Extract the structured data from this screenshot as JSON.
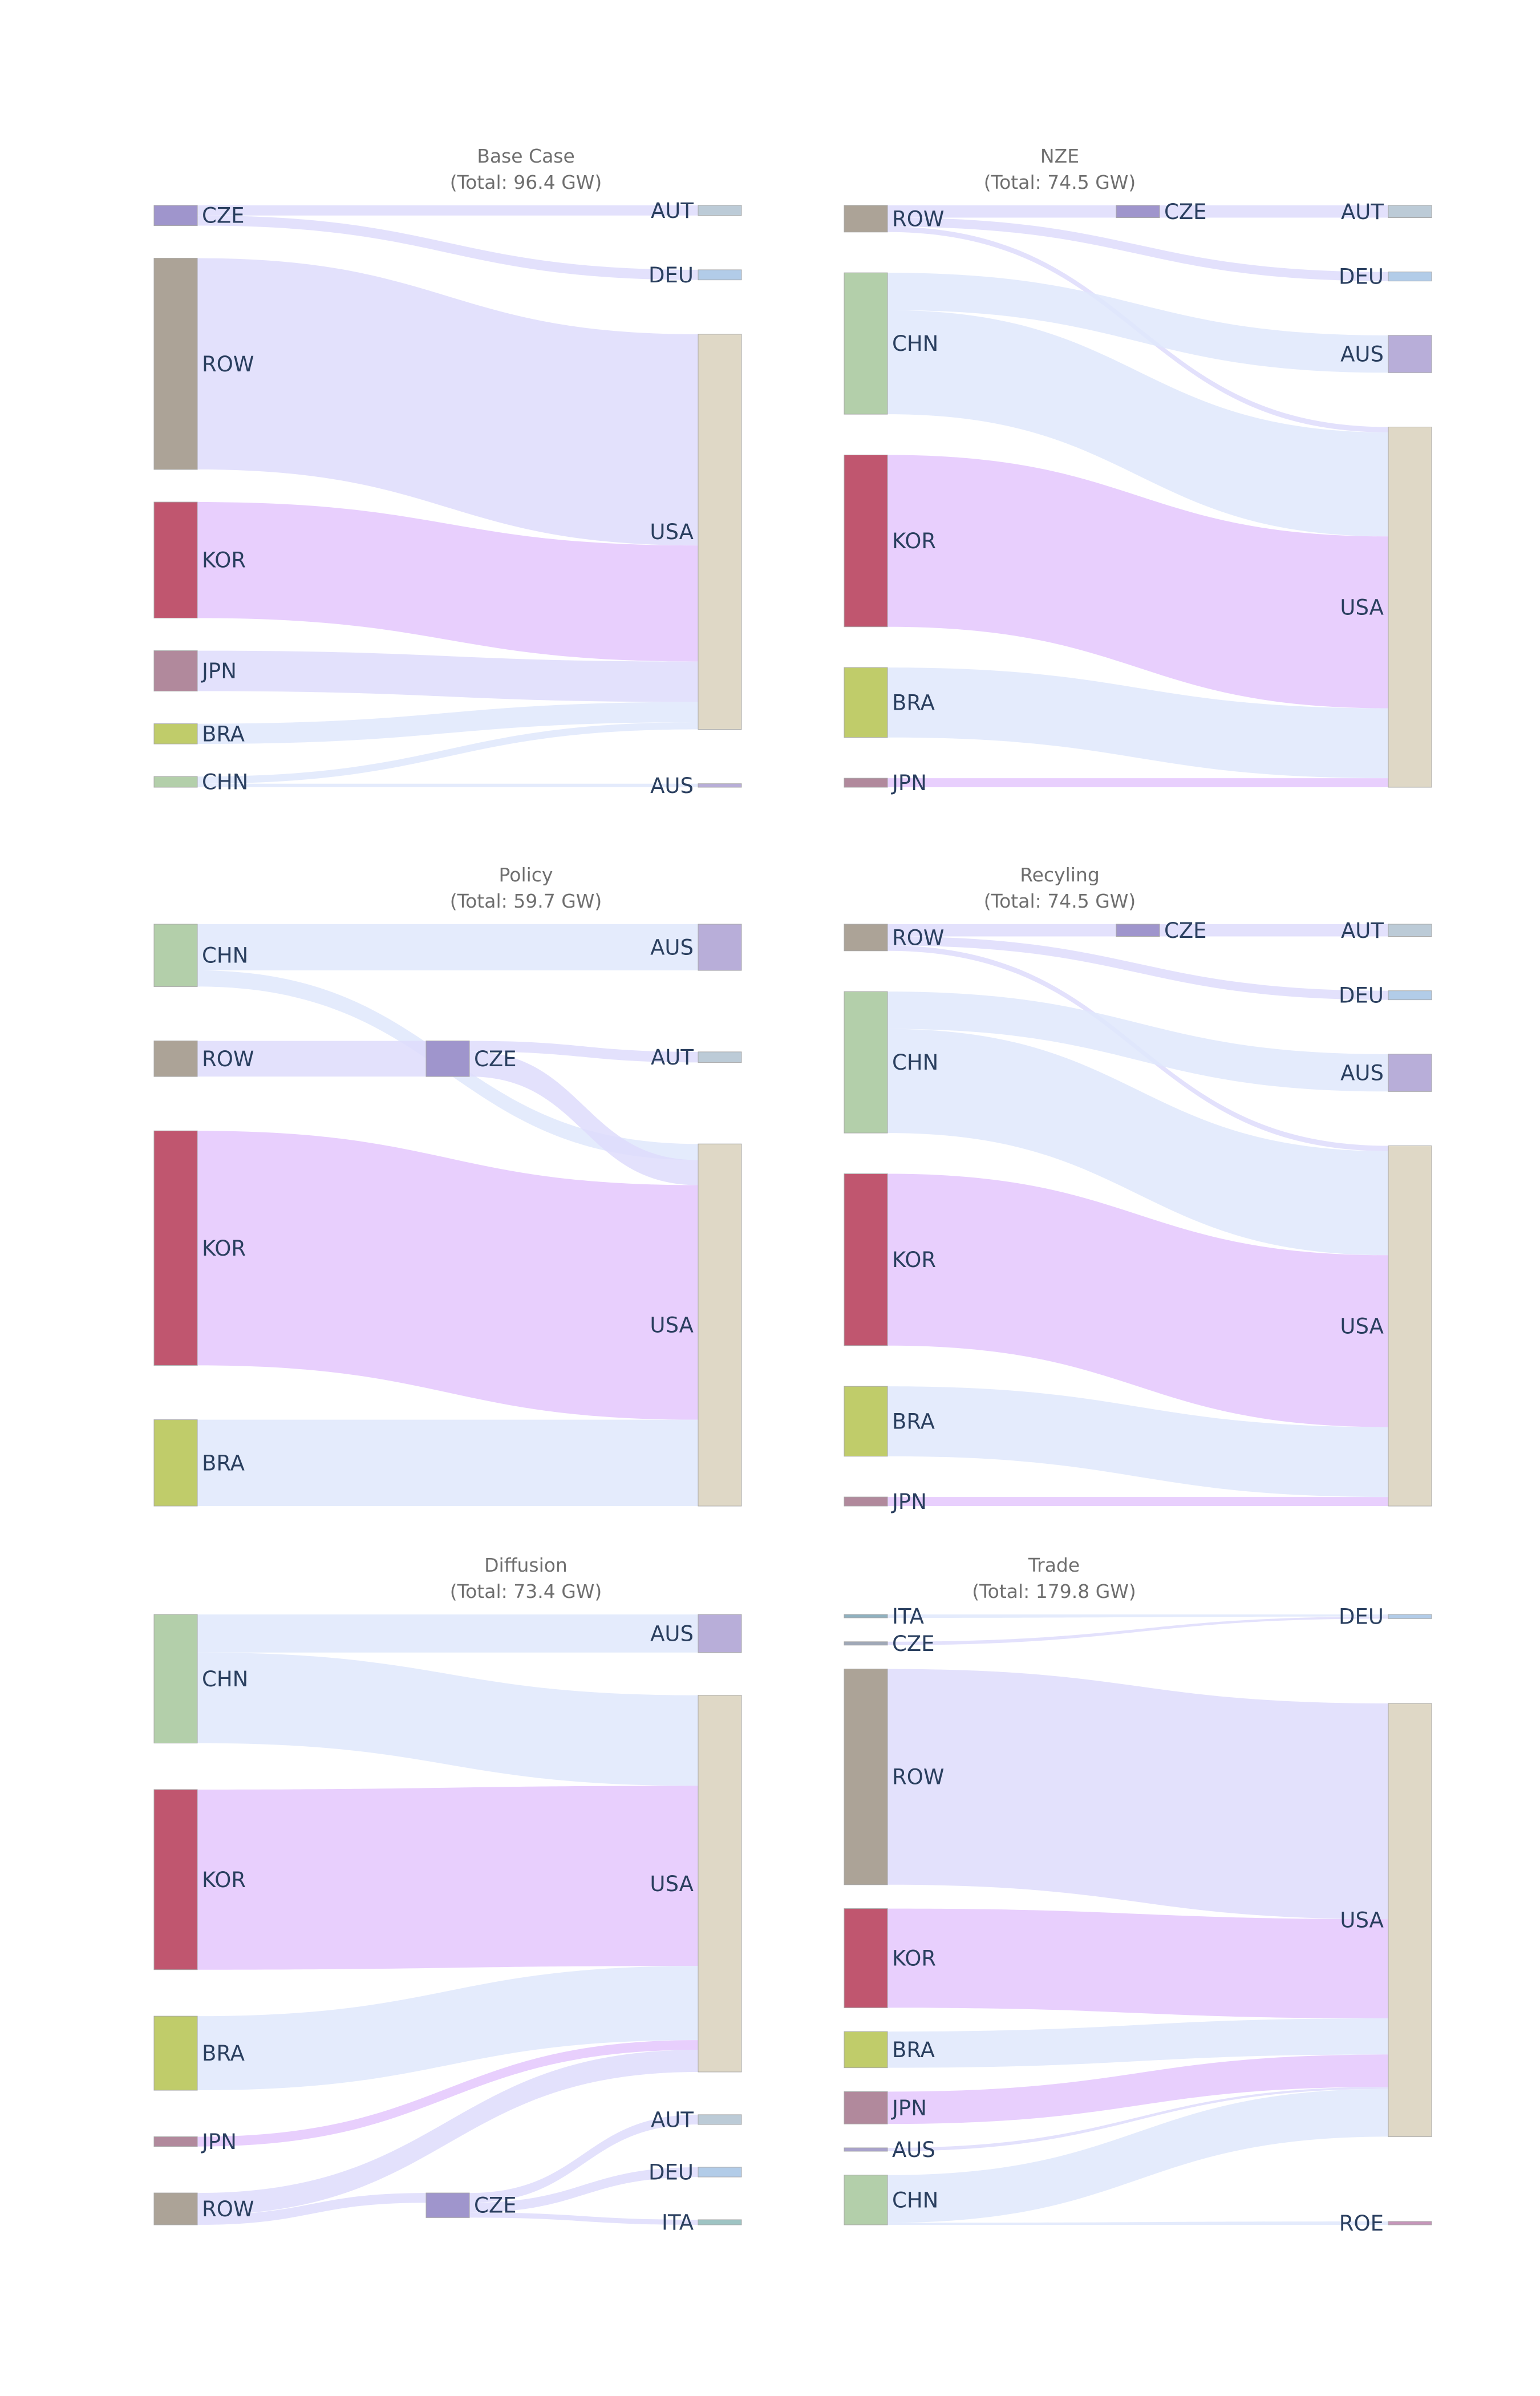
{
  "colors": {
    "CZE": "#9f95cc",
    "ROW": "#aca397",
    "KOR": "#c0566f",
    "JPN": "#b1899c",
    "BRA": "#c0cc6a",
    "CHN": "#b3cfaa",
    "AUT": "#bccbd7",
    "DEU": "#b2cce8",
    "USA": "#dfd8c6",
    "AUS": "#b8aed9",
    "ITA": "#9ec4c3",
    "ROE": "#c596b9",
    "AUS_src": "#a9a2cc",
    "ITA_src": "#8fb1bf",
    "CZE_src": "#9fa8b7"
  },
  "link_colors": {
    "lavender": "#dedcfb",
    "blue": "#dfe7fb",
    "magenta": "#e4c7fd"
  },
  "panels": [
    {
      "id": "base-case",
      "title": "Base Case",
      "subtitle": "(Total: 96.4 GW)",
      "nodes": [
        {
          "key": "CZE",
          "label": "CZE",
          "side": "left",
          "color": "CZE"
        },
        {
          "key": "ROW",
          "label": "ROW",
          "side": "left",
          "color": "ROW"
        },
        {
          "key": "KOR",
          "label": "KOR",
          "side": "left",
          "color": "KOR"
        },
        {
          "key": "JPN",
          "label": "JPN",
          "side": "left",
          "color": "JPN"
        },
        {
          "key": "BRA",
          "label": "BRA",
          "side": "left",
          "color": "BRA"
        },
        {
          "key": "CHN",
          "label": "CHN",
          "side": "left",
          "color": "CHN"
        },
        {
          "key": "AUT",
          "label": "AUT",
          "side": "right",
          "color": "AUT"
        },
        {
          "key": "DEU",
          "label": "DEU",
          "side": "right",
          "color": "DEU"
        },
        {
          "key": "USA",
          "label": "USA",
          "side": "right",
          "color": "USA"
        },
        {
          "key": "AUS",
          "label": "AUS",
          "side": "right",
          "color": "AUS"
        }
      ],
      "flows": [
        {
          "from": "CZE",
          "to": "AUT",
          "value": 1.7,
          "color": "lavender"
        },
        {
          "from": "CZE",
          "to": "DEU",
          "value": 1.7,
          "color": "lavender"
        },
        {
          "from": "ROW",
          "to": "USA",
          "value": 35.5,
          "color": "lavender"
        },
        {
          "from": "KOR",
          "to": "USA",
          "value": 19.5,
          "color": "magenta"
        },
        {
          "from": "JPN",
          "to": "USA",
          "value": 6.8,
          "color": "lavender"
        },
        {
          "from": "BRA",
          "to": "USA",
          "value": 3.4,
          "color": "blue"
        },
        {
          "from": "CHN",
          "to": "USA",
          "value": 1.2,
          "color": "blue"
        },
        {
          "from": "CHN",
          "to": "AUS",
          "value": 0.6,
          "color": "blue"
        }
      ]
    },
    {
      "id": "nze",
      "title": "NZE",
      "subtitle": "(Total: 74.5 GW)",
      "nodes": [
        {
          "key": "ROW",
          "label": "ROW",
          "side": "left",
          "color": "ROW"
        },
        {
          "key": "CHN",
          "label": "CHN",
          "side": "left",
          "color": "CHN"
        },
        {
          "key": "KOR",
          "label": "KOR",
          "side": "left",
          "color": "KOR"
        },
        {
          "key": "BRA",
          "label": "BRA",
          "side": "left",
          "color": "BRA"
        },
        {
          "key": "JPN",
          "label": "JPN",
          "side": "left",
          "color": "JPN"
        },
        {
          "key": "CZE",
          "label": "CZE",
          "side": "mid",
          "color": "CZE"
        },
        {
          "key": "AUT",
          "label": "AUT",
          "side": "right",
          "color": "AUT"
        },
        {
          "key": "DEU",
          "label": "DEU",
          "side": "right",
          "color": "DEU"
        },
        {
          "key": "AUS",
          "label": "AUS",
          "side": "right",
          "color": "AUS"
        },
        {
          "key": "USA",
          "label": "USA",
          "side": "right",
          "color": "USA"
        }
      ],
      "flows": [
        {
          "from": "ROW",
          "to": "CZE",
          "value": 2.3,
          "color": "lavender"
        },
        {
          "from": "ROW",
          "to": "DEU",
          "value": 1.7,
          "color": "lavender"
        },
        {
          "from": "ROW",
          "to": "USA",
          "value": 1.0,
          "color": "lavender"
        },
        {
          "from": "CZE",
          "to": "AUT",
          "value": 2.3,
          "color": "lavender"
        },
        {
          "from": "CHN",
          "to": "AUS",
          "value": 7.0,
          "color": "blue"
        },
        {
          "from": "CHN",
          "to": "USA",
          "value": 19.5,
          "color": "blue"
        },
        {
          "from": "KOR",
          "to": "USA",
          "value": 32.2,
          "color": "magenta"
        },
        {
          "from": "BRA",
          "to": "USA",
          "value": 13.1,
          "color": "blue"
        },
        {
          "from": "JPN",
          "to": "USA",
          "value": 1.7,
          "color": "magenta"
        }
      ]
    },
    {
      "id": "policy",
      "title": "Policy",
      "subtitle": "(Total: 59.7 GW)",
      "nodes": [
        {
          "key": "CHN",
          "label": "CHN",
          "side": "left",
          "color": "CHN"
        },
        {
          "key": "ROW",
          "label": "ROW",
          "side": "left",
          "color": "ROW"
        },
        {
          "key": "KOR",
          "label": "KOR",
          "side": "left",
          "color": "KOR"
        },
        {
          "key": "BRA",
          "label": "BRA",
          "side": "left",
          "color": "BRA"
        },
        {
          "key": "CZE",
          "label": "CZE",
          "side": "mid",
          "color": "CZE"
        },
        {
          "key": "AUS",
          "label": "AUS",
          "side": "right",
          "color": "AUS"
        },
        {
          "key": "AUT",
          "label": "AUT",
          "side": "right",
          "color": "AUT"
        },
        {
          "key": "USA",
          "label": "USA",
          "side": "right",
          "color": "USA"
        }
      ],
      "flows": [
        {
          "from": "CHN",
          "to": "AUS",
          "value": 8.3,
          "color": "blue"
        },
        {
          "from": "CHN",
          "to": "USA",
          "value": 2.9,
          "color": "blue"
        },
        {
          "from": "ROW",
          "to": "CZE",
          "value": 6.4,
          "color": "lavender"
        },
        {
          "from": "CZE",
          "to": "AUT",
          "value": 1.9,
          "color": "lavender"
        },
        {
          "from": "CZE",
          "to": "USA",
          "value": 4.5,
          "color": "lavender"
        },
        {
          "from": "KOR",
          "to": "USA",
          "value": 42.1,
          "color": "magenta"
        },
        {
          "from": "BRA",
          "to": "USA",
          "value": 15.5,
          "color": "blue"
        }
      ]
    },
    {
      "id": "recycling",
      "title": "Recyling",
      "subtitle": "(Total: 74.5 GW)",
      "nodes": [
        {
          "key": "ROW",
          "label": "ROW",
          "side": "left",
          "color": "ROW"
        },
        {
          "key": "CHN",
          "label": "CHN",
          "side": "left",
          "color": "CHN"
        },
        {
          "key": "KOR",
          "label": "KOR",
          "side": "left",
          "color": "KOR"
        },
        {
          "key": "BRA",
          "label": "BRA",
          "side": "left",
          "color": "BRA"
        },
        {
          "key": "JPN",
          "label": "JPN",
          "side": "left",
          "color": "JPN"
        },
        {
          "key": "CZE",
          "label": "CZE",
          "side": "mid",
          "color": "CZE"
        },
        {
          "key": "AUT",
          "label": "AUT",
          "side": "right",
          "color": "AUT"
        },
        {
          "key": "DEU",
          "label": "DEU",
          "side": "right",
          "color": "DEU"
        },
        {
          "key": "AUS",
          "label": "AUS",
          "side": "right",
          "color": "AUS"
        },
        {
          "key": "USA",
          "label": "USA",
          "side": "right",
          "color": "USA"
        }
      ],
      "flows": [
        {
          "from": "ROW",
          "to": "CZE",
          "value": 2.3,
          "color": "lavender"
        },
        {
          "from": "ROW",
          "to": "DEU",
          "value": 1.7,
          "color": "lavender"
        },
        {
          "from": "ROW",
          "to": "USA",
          "value": 1.0,
          "color": "lavender"
        },
        {
          "from": "CZE",
          "to": "AUT",
          "value": 2.3,
          "color": "lavender"
        },
        {
          "from": "CHN",
          "to": "AUS",
          "value": 7.0,
          "color": "blue"
        },
        {
          "from": "CHN",
          "to": "USA",
          "value": 19.5,
          "color": "blue"
        },
        {
          "from": "KOR",
          "to": "USA",
          "value": 32.2,
          "color": "magenta"
        },
        {
          "from": "BRA",
          "to": "USA",
          "value": 13.1,
          "color": "blue"
        },
        {
          "from": "JPN",
          "to": "USA",
          "value": 1.7,
          "color": "magenta"
        }
      ]
    },
    {
      "id": "diffusion",
      "title": "Diffusion",
      "subtitle": "(Total: 73.4 GW)",
      "nodes": [
        {
          "key": "CHN",
          "label": "CHN",
          "side": "left",
          "color": "CHN"
        },
        {
          "key": "KOR",
          "label": "KOR",
          "side": "left",
          "color": "KOR"
        },
        {
          "key": "BRA",
          "label": "BRA",
          "side": "left",
          "color": "BRA"
        },
        {
          "key": "JPN",
          "label": "JPN",
          "side": "left",
          "color": "JPN"
        },
        {
          "key": "ROW",
          "label": "ROW",
          "side": "left",
          "color": "ROW"
        },
        {
          "key": "CZE",
          "label": "CZE",
          "side": "mid",
          "color": "CZE"
        },
        {
          "key": "AUS",
          "label": "AUS",
          "side": "right",
          "color": "AUS"
        },
        {
          "key": "USA",
          "label": "USA",
          "side": "right",
          "color": "USA"
        },
        {
          "key": "AUT",
          "label": "AUT",
          "side": "right",
          "color": "AUT"
        },
        {
          "key": "DEU",
          "label": "DEU",
          "side": "right",
          "color": "DEU"
        },
        {
          "key": "ITA",
          "label": "ITA",
          "side": "right",
          "color": "ITA"
        }
      ],
      "flows": [
        {
          "from": "CHN",
          "to": "AUS",
          "value": 7.4,
          "color": "blue"
        },
        {
          "from": "CHN",
          "to": "USA",
          "value": 17.6,
          "color": "blue"
        },
        {
          "from": "KOR",
          "to": "USA",
          "value": 35.0,
          "color": "magenta"
        },
        {
          "from": "BRA",
          "to": "USA",
          "value": 14.4,
          "color": "blue"
        },
        {
          "from": "JPN",
          "to": "USA",
          "value": 1.9,
          "color": "magenta"
        },
        {
          "from": "ROW",
          "to": "USA",
          "value": 4.3,
          "color": "lavender"
        },
        {
          "from": "ROW",
          "to": "CZE",
          "value": 1.9,
          "color": "lavender"
        },
        {
          "from": "CZE",
          "to": "AUT",
          "value": 1.9,
          "color": "lavender"
        },
        {
          "from": "CZE",
          "to": "DEU",
          "value": 1.9,
          "color": "lavender"
        },
        {
          "from": "CZE",
          "to": "ITA",
          "value": 1.0,
          "color": "lavender"
        }
      ]
    },
    {
      "id": "trade",
      "title": "Trade",
      "subtitle": "(Total: 179.8 GW)",
      "nodes": [
        {
          "key": "ITA",
          "label": "ITA",
          "side": "left",
          "color": "ITA_src"
        },
        {
          "key": "CZE",
          "label": "CZE",
          "side": "left",
          "color": "CZE_src"
        },
        {
          "key": "ROW",
          "label": "ROW",
          "side": "left",
          "color": "ROW"
        },
        {
          "key": "KOR",
          "label": "KOR",
          "side": "left",
          "color": "KOR"
        },
        {
          "key": "BRA",
          "label": "BRA",
          "side": "left",
          "color": "BRA"
        },
        {
          "key": "JPN",
          "label": "JPN",
          "side": "left",
          "color": "JPN"
        },
        {
          "key": "AUS",
          "label": "AUS",
          "side": "left",
          "color": "AUS_src"
        },
        {
          "key": "CHN",
          "label": "CHN",
          "side": "left",
          "color": "CHN"
        },
        {
          "key": "DEU",
          "label": "DEU",
          "side": "right",
          "color": "DEU"
        },
        {
          "key": "USA",
          "label": "USA",
          "side": "right",
          "color": "USA"
        },
        {
          "key": "ROE",
          "label": "ROE",
          "side": "right",
          "color": "ROE"
        }
      ],
      "flows": [
        {
          "from": "ITA",
          "to": "DEU",
          "value": 0.6,
          "color": "blue"
        },
        {
          "from": "CZE",
          "to": "DEU",
          "value": 0.6,
          "color": "lavender"
        },
        {
          "from": "ROW",
          "to": "USA",
          "value": 62.0,
          "color": "lavender"
        },
        {
          "from": "KOR",
          "to": "USA",
          "value": 28.5,
          "color": "magenta"
        },
        {
          "from": "BRA",
          "to": "USA",
          "value": 10.4,
          "color": "blue"
        },
        {
          "from": "JPN",
          "to": "USA",
          "value": 9.3,
          "color": "magenta"
        },
        {
          "from": "AUS",
          "to": "USA",
          "value": 0.6,
          "color": "lavender"
        },
        {
          "from": "CHN",
          "to": "USA",
          "value": 13.7,
          "color": "blue"
        },
        {
          "from": "CHN",
          "to": "ROE",
          "value": 0.6,
          "color": "blue"
        }
      ]
    }
  ]
}
